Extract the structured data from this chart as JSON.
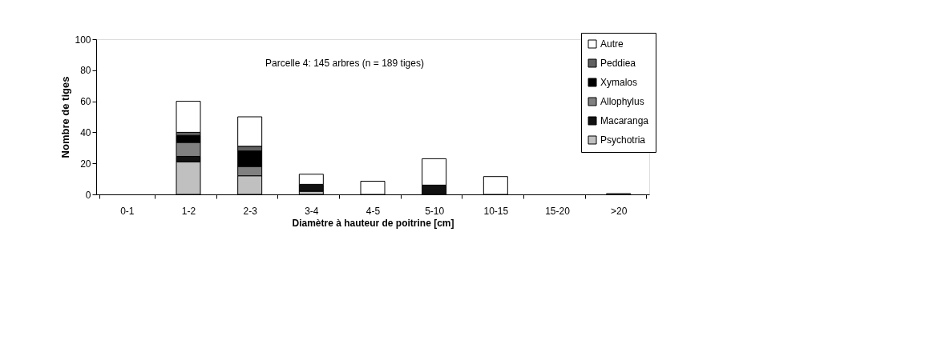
{
  "chart_data": {
    "type": "bar",
    "stacked": true,
    "categories": [
      "0-1",
      "1-2",
      "2-3",
      "3-4",
      "4-5",
      "5-10",
      "10-15",
      "15-20",
      ">20"
    ],
    "xlabel": "Diamètre à hauteur de poitrine [cm]",
    "ylabel": "Nombre de tiges",
    "annotations": [
      "Parcelle 4: 145 arbres (n = 189 tiges)"
    ],
    "ylim": [
      0,
      100
    ],
    "yticks": [
      0,
      20,
      40,
      60,
      80,
      100
    ],
    "grid": false,
    "legend": "top right",
    "series": [
      {
        "name": "Psychotria",
        "color": "#c0c0c0",
        "values": [
          null,
          21,
          12,
          2,
          null,
          null,
          null,
          null,
          null
        ]
      },
      {
        "name": "Macaranga",
        "color": "#111111",
        "values": [
          null,
          3.5,
          null,
          4.5,
          null,
          6,
          null,
          null,
          null
        ]
      },
      {
        "name": "Allophylus",
        "color": "#808080",
        "values": [
          null,
          9,
          6,
          null,
          null,
          null,
          null,
          null,
          null
        ]
      },
      {
        "name": "Xymalos",
        "color": "#000000",
        "values": [
          null,
          4.5,
          10,
          null,
          null,
          null,
          null,
          null,
          null
        ]
      },
      {
        "name": "Peddiea",
        "color": "#606060",
        "values": [
          null,
          2,
          3,
          null,
          null,
          null,
          null,
          null,
          null
        ]
      },
      {
        "name": "Autre",
        "color": "#ffffff",
        "values": [
          null,
          20,
          19,
          6.5,
          8.5,
          17,
          11.5,
          null,
          0.5
        ]
      }
    ]
  }
}
